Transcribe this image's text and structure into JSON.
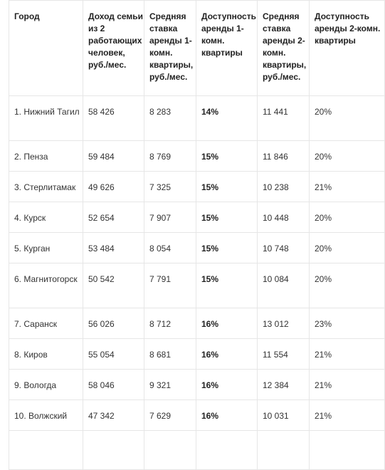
{
  "table": {
    "headers": [
      "Город",
      "Доход семьи из 2 работающих человек, руб./мес.",
      "Средняя ставка аренды 1-комн. квартиры, руб./мес.",
      "Доступность аренды 1-комн. квартиры",
      "Средняя ставка аренды 2-комн. квартиры, руб./мес.",
      "Доступность аренды 2-комн. квартиры"
    ],
    "rows": [
      [
        "1. Нижний Тагил",
        "58 426",
        "8 283",
        "14%",
        "11 441",
        "20%"
      ],
      [
        "2. Пенза",
        "59 484",
        "8 769",
        "15%",
        "11 846",
        "20%"
      ],
      [
        "3. Стерлитамак",
        "49 626",
        "7 325",
        "15%",
        "10 238",
        "21%"
      ],
      [
        "4. Курск",
        "52 654",
        "7 907",
        "15%",
        "10 448",
        "20%"
      ],
      [
        "5. Курган",
        "53 484",
        "8 054",
        "15%",
        "10 748",
        "20%"
      ],
      [
        "6. Магнитогорск",
        "50 542",
        "7 791",
        "15%",
        "10 084",
        "20%"
      ],
      [
        "7. Саранск",
        "56 026",
        "8 712",
        "16%",
        "13 012",
        "23%"
      ],
      [
        "8. Киров",
        "55 054",
        "8 681",
        "16%",
        "11 554",
        "21%"
      ],
      [
        "9. Вологда",
        "58 046",
        "9 321",
        "16%",
        "12 384",
        "21%"
      ],
      [
        "10. Волжский",
        "47 342",
        "7 629",
        "16%",
        "10 031",
        "21%"
      ],
      [
        "",
        "",
        "",
        "",
        "",
        ""
      ]
    ]
  }
}
